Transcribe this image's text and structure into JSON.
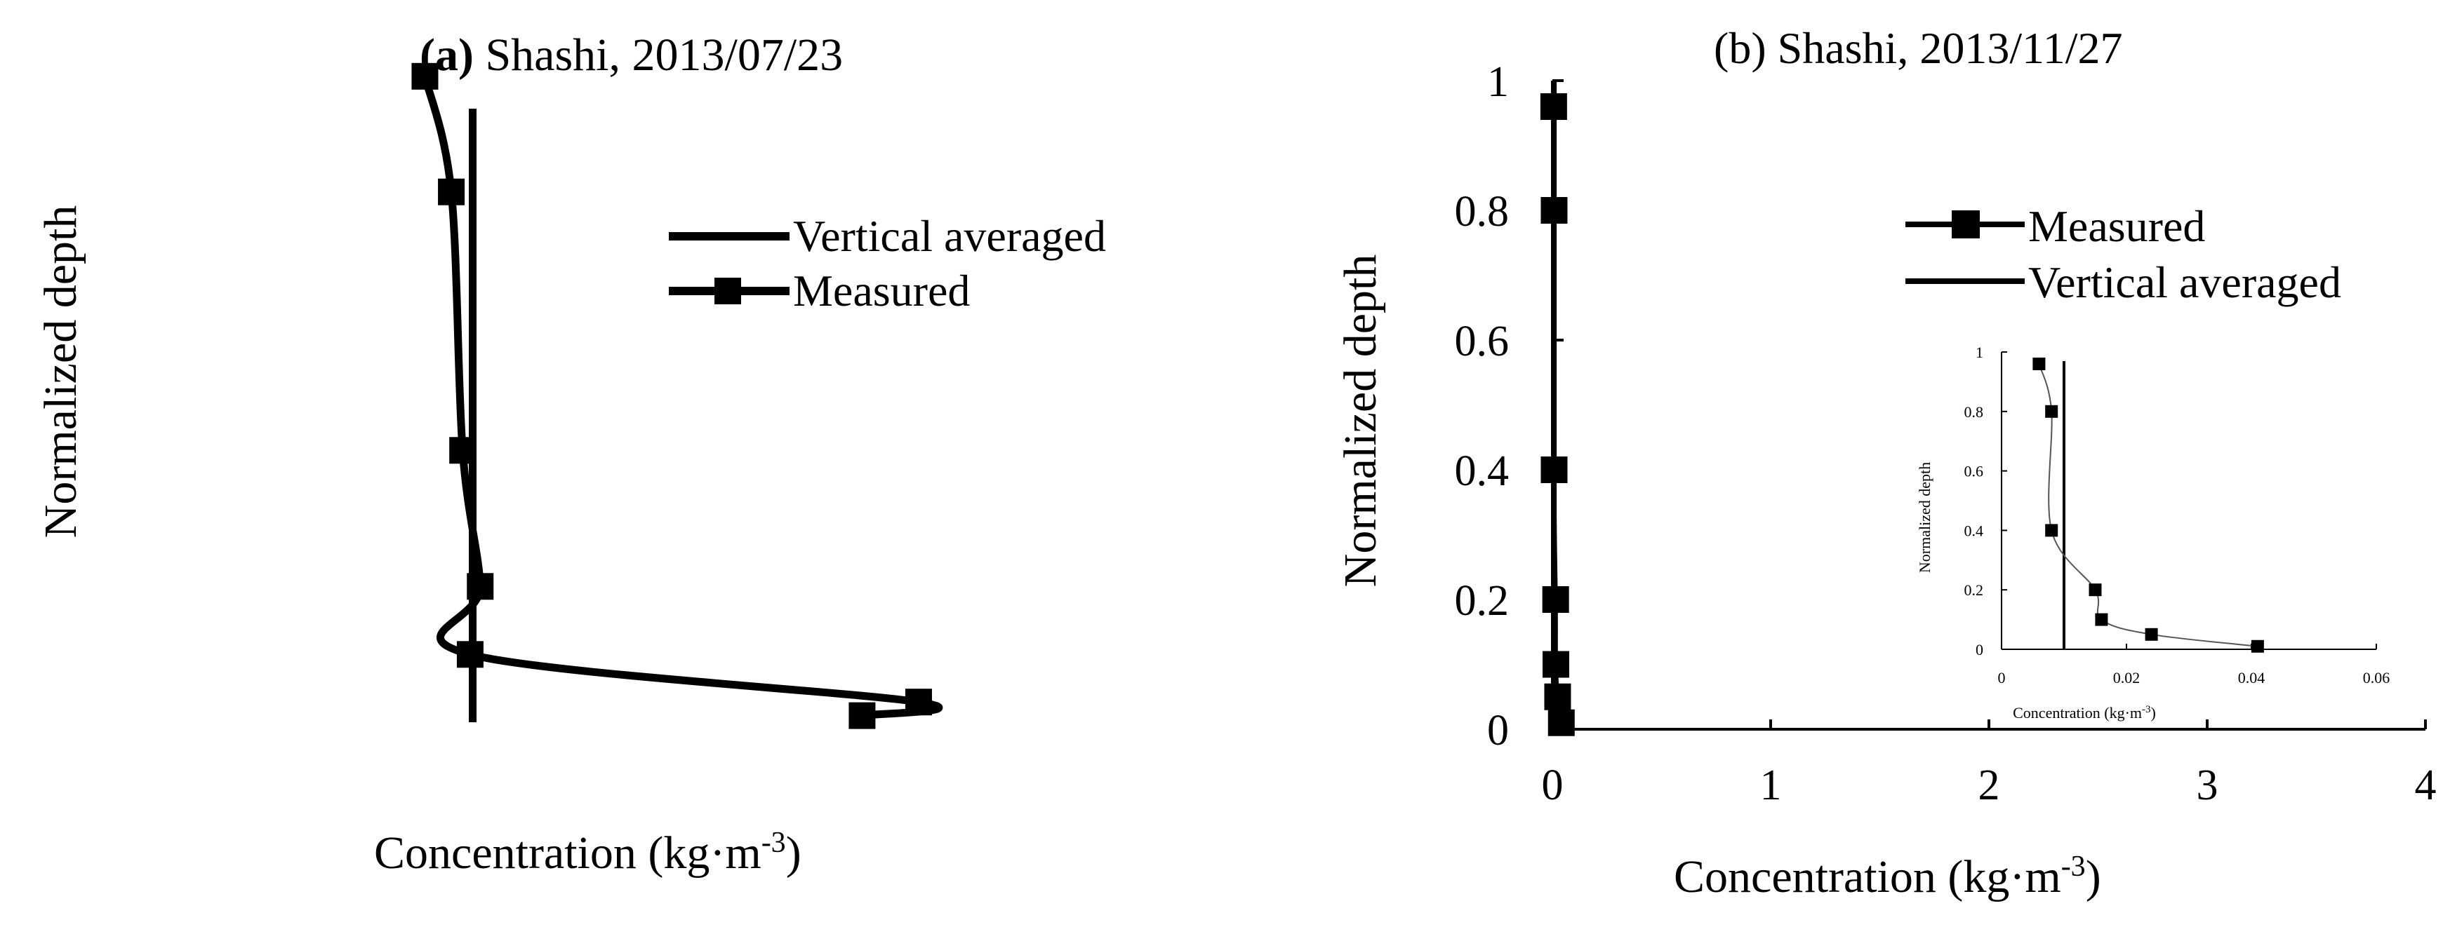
{
  "chart_data": [
    {
      "id": "a",
      "type": "line",
      "title_prefix": "a",
      "title_rest": " Shashi, 2013/07/23",
      "xlabel_main": "Concentration (kg·m",
      "xlabel_sup": "-3",
      "xlabel_end": ")",
      "ylabel": "Normalized depth",
      "xlim": [
        0,
        4
      ],
      "ylim": [
        0,
        1
      ],
      "axes_visible": false,
      "legend": {
        "position": "top-right",
        "entries": [
          "Vertical averaged",
          "Measured"
        ]
      },
      "series": [
        {
          "name": "Measured",
          "marker": "square",
          "points": [
            {
              "x": 0.12,
              "y": 0.96
            },
            {
              "x": 0.33,
              "y": 0.79
            },
            {
              "x": 0.42,
              "y": 0.41
            },
            {
              "x": 0.56,
              "y": 0.21
            },
            {
              "x": 0.48,
              "y": 0.11
            },
            {
              "x": 4.05,
              "y": 0.04
            },
            {
              "x": 3.6,
              "y": 0.02
            }
          ]
        },
        {
          "name": "Vertical averaged",
          "marker": "none",
          "x": 0.5
        }
      ]
    },
    {
      "id": "b",
      "type": "line",
      "title": "(b) Shashi, 2013/11/27",
      "xlabel_main": "Concentration (kg·m",
      "xlabel_sup": "-3",
      "xlabel_end": ")",
      "ylabel": "Normalized depth",
      "xlim": [
        0,
        4
      ],
      "ylim": [
        0,
        1
      ],
      "xticks": [
        "0",
        "1",
        "2",
        "3",
        "4"
      ],
      "yticks": [
        "0",
        "0.2",
        "0.4",
        "0.6",
        "0.8",
        "1"
      ],
      "legend": {
        "position": "top-right",
        "entries": [
          "Measured",
          "Vertical averaged"
        ]
      },
      "series": [
        {
          "name": "Measured",
          "marker": "square",
          "points": [
            {
              "x": 0.006,
              "y": 0.96
            },
            {
              "x": 0.008,
              "y": 0.8
            },
            {
              "x": 0.008,
              "y": 0.4
            },
            {
              "x": 0.015,
              "y": 0.2
            },
            {
              "x": 0.016,
              "y": 0.1
            },
            {
              "x": 0.024,
              "y": 0.05
            },
            {
              "x": 0.041,
              "y": 0.01
            }
          ]
        },
        {
          "name": "Vertical averaged",
          "marker": "none",
          "x": 0.01
        }
      ],
      "inset": {
        "xlabel_main": "Concentration (kg·m",
        "xlabel_sup": "-3",
        "xlabel_end": ")",
        "ylabel": "Normalized depth",
        "xlim": [
          0,
          0.06
        ],
        "ylim": [
          0,
          1
        ],
        "xticks": [
          "0",
          "0.02",
          "0.04",
          "0.06"
        ],
        "yticks": [
          "0",
          "0.2",
          "0.4",
          "0.6",
          "0.8",
          "1"
        ]
      }
    }
  ]
}
